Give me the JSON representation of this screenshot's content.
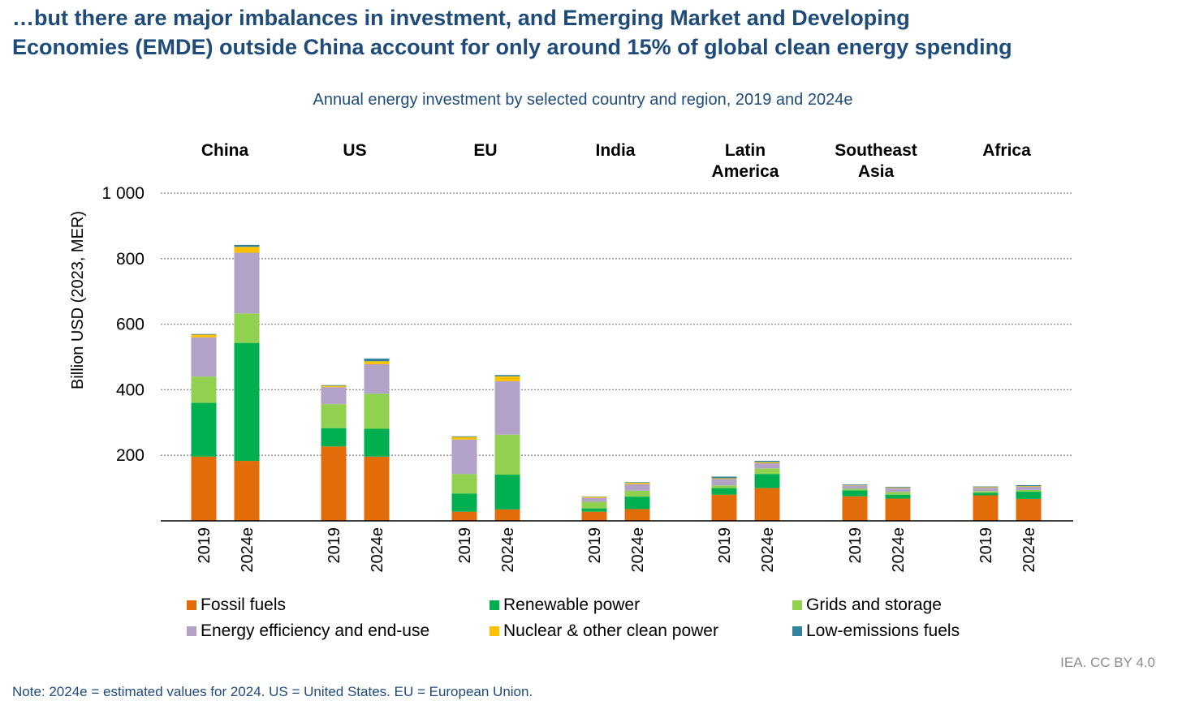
{
  "headline": {
    "line1": "…but there are major imbalances in investment, and Emerging Market and Developing",
    "line2": "Economies (EMDE) outside China account for only around 15% of global clean energy spending"
  },
  "subtitle": "Annual energy investment by selected country and region, 2019 and 2024e",
  "source": "IEA. CC BY 4.0",
  "note": "Note: 2024e = estimated values for 2024. US = United States. EU = European Union.",
  "colors": {
    "fossil": "#e36c0a",
    "renewable": "#00b050",
    "grids": "#92d050",
    "efficiency": "#b3a2c7",
    "nuclear": "#ffc000",
    "lowemission": "#31849b"
  },
  "chart_data": {
    "type": "bar",
    "stacked": true,
    "ylabel": "Billion USD (2023, MER)",
    "ylim": [
      0,
      1000
    ],
    "yticks": [
      200,
      400,
      600,
      800,
      1000
    ],
    "ytick_labels": [
      "200",
      "400",
      "600",
      "800",
      "1 000"
    ],
    "grid": true,
    "legend_position": "bottom",
    "groups": [
      {
        "name": "China",
        "name_lines": [
          "China"
        ],
        "categories": [
          "2019",
          "2024e"
        ]
      },
      {
        "name": "US",
        "name_lines": [
          "US"
        ],
        "categories": [
          "2019",
          "2024e"
        ]
      },
      {
        "name": "EU",
        "name_lines": [
          "EU"
        ],
        "categories": [
          "2019",
          "2024e"
        ]
      },
      {
        "name": "India",
        "name_lines": [
          "India"
        ],
        "categories": [
          "2019",
          "2024e"
        ]
      },
      {
        "name": "Latin America",
        "name_lines": [
          "Latin",
          "America"
        ],
        "categories": [
          "2019",
          "2024e"
        ]
      },
      {
        "name": "Southeast Asia",
        "name_lines": [
          "Southeast",
          "Asia"
        ],
        "categories": [
          "2019",
          "2024e"
        ]
      },
      {
        "name": "Africa",
        "name_lines": [
          "Africa"
        ],
        "categories": [
          "2019",
          "2024e"
        ]
      }
    ],
    "series": [
      {
        "key": "fossil",
        "name": "Fossil fuels",
        "values": [
          196,
          183,
          227,
          196,
          28,
          35,
          28,
          36,
          80,
          100,
          75,
          68,
          78,
          67
        ]
      },
      {
        "key": "renewable",
        "name": "Renewable power",
        "values": [
          164,
          360,
          56,
          85,
          55,
          106,
          10,
          38,
          20,
          43,
          18,
          12,
          8,
          22
        ]
      },
      {
        "key": "grids",
        "name": "Grids and storage",
        "values": [
          80,
          90,
          73,
          107,
          60,
          122,
          20,
          18,
          8,
          17,
          5,
          8,
          5,
          5
        ]
      },
      {
        "key": "efficiency",
        "name": "Energy efficiency and end-use",
        "values": [
          120,
          185,
          52,
          90,
          105,
          163,
          12,
          20,
          20,
          16,
          10,
          12,
          10,
          10
        ]
      },
      {
        "key": "nuclear",
        "name": "Nuclear & other clean power",
        "values": [
          8,
          18,
          4,
          9,
          8,
          15,
          3,
          4,
          2,
          3,
          1,
          2,
          2,
          2
        ]
      },
      {
        "key": "lowemission",
        "name": "Low-emissions fuels",
        "values": [
          2,
          6,
          2,
          8,
          2,
          4,
          1,
          2,
          5,
          4,
          2,
          2,
          2,
          3
        ]
      }
    ]
  }
}
